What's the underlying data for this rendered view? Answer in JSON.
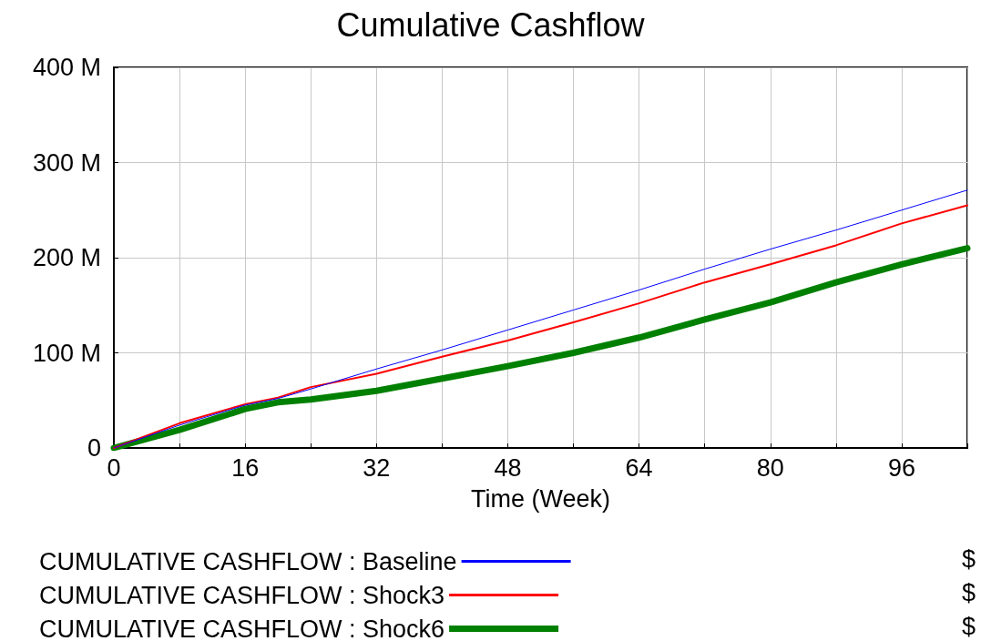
{
  "chart_data": {
    "type": "line",
    "title": "Cumulative Cashflow",
    "xlabel": "Time (Week)",
    "x": [
      0,
      8,
      16,
      20,
      24,
      32,
      40,
      48,
      56,
      64,
      72,
      80,
      88,
      96,
      104
    ],
    "series": [
      {
        "name": "CUMULATIVE CASHFLOW : Baseline",
        "color": "#0000ff",
        "values": [
          0,
          24,
          45,
          52,
          62,
          83,
          103,
          124,
          145,
          166,
          188,
          209,
          229,
          250,
          271
        ]
      },
      {
        "name": "CUMULATIVE CASHFLOW : Shock3",
        "color": "#ff0000",
        "values": [
          0,
          26,
          46,
          53,
          64,
          78,
          96,
          113,
          132,
          152,
          174,
          193,
          213,
          236,
          255
        ]
      },
      {
        "name": "CUMULATIVE CASHFLOW : Shock6",
        "color": "#008000",
        "values": [
          0,
          19,
          41,
          48,
          51,
          60,
          73,
          86,
          100,
          116,
          135,
          153,
          174,
          193,
          210
        ]
      }
    ],
    "xlim": [
      0,
      104
    ],
    "xticks": [
      0,
      {
        "value": 8,
        "label": null
      },
      16,
      {
        "value": 24,
        "label": null
      },
      32,
      {
        "value": 40,
        "label": null
      },
      48,
      {
        "value": 56,
        "label": null
      },
      64,
      {
        "value": 72,
        "label": null
      },
      80,
      {
        "value": 88,
        "label": null
      },
      96,
      {
        "value": 104,
        "label": null
      }
    ],
    "ylim": [
      0,
      400
    ],
    "yticks": [
      0,
      {
        "value": 100,
        "label": "100 M"
      },
      {
        "value": 200,
        "label": "200 M"
      },
      {
        "value": 300,
        "label": "300 M"
      },
      {
        "value": 400,
        "label": "400 M"
      }
    ],
    "grid": true,
    "legend": "bottom",
    "marker": "none",
    "line_style": "solid",
    "annotations": [
      "$",
      "$",
      "$"
    ]
  }
}
